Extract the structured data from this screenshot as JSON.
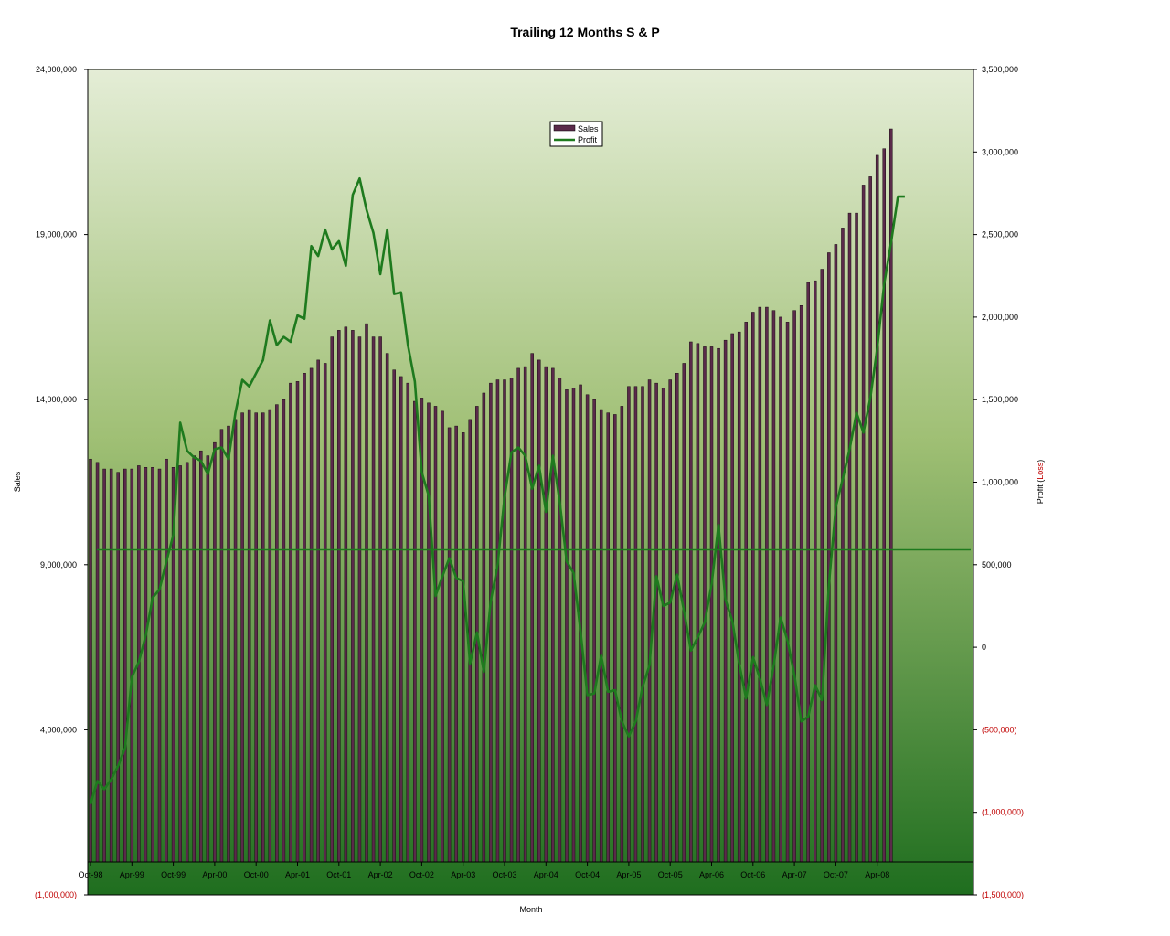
{
  "chart_data": {
    "type": "bar",
    "title": "Trailing 12 Months S & P",
    "xlabel": "Month",
    "ylabel": "Sales",
    "ylabel2_parts": [
      "Profit (",
      "Loss",
      ")"
    ],
    "ylim": [
      -1000000,
      24000000
    ],
    "ylim2": [
      -1500000,
      3500000
    ],
    "y_ticks": [
      -1000000,
      4000000,
      9000000,
      14000000,
      19000000,
      24000000
    ],
    "y_tick_labels": [
      "(1,000,000)",
      "4,000,000",
      "9,000,000",
      "14,000,000",
      "19,000,000",
      "24,000,000"
    ],
    "y2_ticks": [
      -1500000,
      -1000000,
      -500000,
      0,
      500000,
      1000000,
      1500000,
      2000000,
      2500000,
      3000000,
      3500000
    ],
    "y2_tick_labels": [
      "(1,500,000)",
      "(1,000,000)",
      "(500,000)",
      "0",
      "500,000",
      "1,000,000",
      "1,500,000",
      "2,000,000",
      "2,500,000",
      "3,000,000",
      "3,500,000"
    ],
    "x_tick_labels": [
      "Oct-98",
      "Apr-99",
      "Oct-99",
      "Apr-00",
      "Oct-00",
      "Apr-01",
      "Oct-01",
      "Apr-02",
      "Oct-02",
      "Apr-03",
      "Oct-03",
      "Apr-04",
      "Oct-04",
      "Apr-05",
      "Oct-05",
      "Apr-06",
      "Oct-06",
      "Apr-07",
      "Oct-07",
      "Apr-08"
    ],
    "grid": false,
    "legend_position": "top-center",
    "reference_line_profit": 590000,
    "series": [
      {
        "name": "Sales",
        "type": "bar",
        "color": "#5a2a4a",
        "values": [
          12200000,
          12100000,
          11900000,
          11900000,
          11800000,
          11900000,
          11900000,
          12000000,
          11950000,
          11950000,
          11900000,
          12200000,
          11950000,
          12000000,
          12100000,
          12300000,
          12450000,
          12300000,
          12700000,
          13100000,
          13200000,
          13400000,
          13600000,
          13700000,
          13600000,
          13600000,
          13700000,
          13850000,
          14000000,
          14500000,
          14550000,
          14800000,
          14950000,
          15200000,
          15100000,
          15900000,
          16100000,
          16200000,
          16100000,
          15900000,
          16300000,
          15900000,
          15900000,
          15400000,
          14900000,
          14700000,
          14500000,
          13950000,
          14050000,
          13900000,
          13800000,
          13650000,
          13150000,
          13200000,
          13000000,
          13400000,
          13800000,
          14200000,
          14500000,
          14600000,
          14600000,
          14650000,
          14950000,
          15000000,
          15400000,
          15200000,
          15000000,
          14950000,
          14650000,
          14300000,
          14350000,
          14450000,
          14150000,
          14000000,
          13700000,
          13600000,
          13550000,
          13800000,
          14400000,
          14400000,
          14400000,
          14600000,
          14500000,
          14350000,
          14600000,
          14800000,
          15100000,
          15750000,
          15700000,
          15600000,
          15600000,
          15550000,
          15800000,
          16000000,
          16050000,
          16350000,
          16650000,
          16800000,
          16800000,
          16700000,
          16500000,
          16350000,
          16700000,
          16850000,
          17550000,
          17600000,
          17950000,
          18450000,
          18700000,
          19200000,
          19650000,
          19650000,
          20500000,
          20750000,
          21400000,
          21600000,
          22200000
        ],
        "width": 3
      },
      {
        "name": "Profit",
        "type": "line",
        "color": "#1e7a1e",
        "values": [
          -950000,
          -810000,
          -860000,
          -800000,
          -720000,
          -610000,
          -180000,
          -90000,
          70000,
          300000,
          350000,
          520000,
          680000,
          1360000,
          1190000,
          1150000,
          1130000,
          1050000,
          1200000,
          1210000,
          1140000,
          1420000,
          1620000,
          1580000,
          1660000,
          1740000,
          1980000,
          1830000,
          1880000,
          1850000,
          2010000,
          1990000,
          2430000,
          2370000,
          2530000,
          2410000,
          2460000,
          2310000,
          2740000,
          2840000,
          2650000,
          2510000,
          2260000,
          2530000,
          2140000,
          2150000,
          1830000,
          1610000,
          1060000,
          920000,
          310000,
          430000,
          540000,
          420000,
          400000,
          -100000,
          90000,
          -150000,
          280000,
          500000,
          910000,
          1180000,
          1210000,
          1160000,
          960000,
          1100000,
          820000,
          1160000,
          880000,
          520000,
          450000,
          100000,
          -290000,
          -280000,
          -50000,
          -270000,
          -260000,
          -450000,
          -540000,
          -450000,
          -240000,
          -110000,
          430000,
          250000,
          270000,
          440000,
          220000,
          -20000,
          60000,
          150000,
          380000,
          740000,
          290000,
          160000,
          -100000,
          -310000,
          -60000,
          -190000,
          -350000,
          -110000,
          180000,
          40000,
          -170000,
          -450000,
          -420000,
          -230000,
          -320000,
          380000,
          850000,
          1020000,
          1200000,
          1420000,
          1300000,
          1510000,
          1810000,
          2200000,
          2450000,
          2730000,
          2730000
        ]
      }
    ]
  },
  "legend": {
    "items": [
      "Sales",
      "Profit"
    ]
  }
}
